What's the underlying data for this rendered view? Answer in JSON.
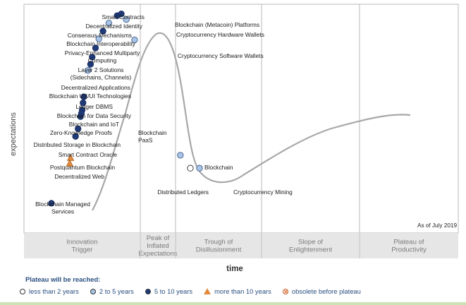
{
  "chart_data": {
    "type": "scatter",
    "title": "",
    "xlabel": "time",
    "ylabel": "expectations",
    "as_of": "As of July 2019",
    "phases": [
      {
        "lines": [
          "Innovation",
          "Trigger"
        ]
      },
      {
        "lines": [
          "Peak of",
          "Inflated",
          "Expectations"
        ]
      },
      {
        "lines": [
          "Trough of",
          "Disillusionment"
        ]
      },
      {
        "lines": [
          "Slope of",
          "Enlightenment"
        ]
      },
      {
        "lines": [
          "Plateau of",
          "Productivity"
        ]
      }
    ],
    "curve_color": "#a8a8a8",
    "legend_title": "Plateau will be reached:",
    "legend": [
      {
        "key": "lt2",
        "label": "less than 2 years",
        "color": "#ffffff"
      },
      {
        "key": "2to5",
        "label": "2 to 5 years",
        "color": "#a9c4e6"
      },
      {
        "key": "5to10",
        "label": "5 to 10 years",
        "color": "#1f3a78"
      },
      {
        "key": "gt10",
        "label": "more than 10 years",
        "color": "#e28a3c"
      },
      {
        "key": "obs",
        "label": "obsolete before plateau",
        "color": "#cc5a1e"
      }
    ],
    "points": [
      {
        "label": [
          "Smart Contracts"
        ],
        "x": 1.62,
        "y": 8.55,
        "plateau": "5to10"
      },
      {
        "label": [
          "Decentralized Identity"
        ],
        "x": 1.52,
        "y": 8.26,
        "plateau": "2to5"
      },
      {
        "label": [
          "Consensus Mechanisms"
        ],
        "x": 1.45,
        "y": 7.94,
        "plateau": "5to10"
      },
      {
        "label": [
          "Blockchain Interoperability"
        ],
        "x": 1.4,
        "y": 7.64,
        "plateau": "2to5"
      },
      {
        "label": [
          "Privacy-Enhanced Multiparty",
          "Computing"
        ],
        "x": 1.36,
        "y": 7.28,
        "plateau": "5to10"
      },
      {
        "label": [
          "Layer 2 Solutions",
          "(Sidechains, Channels)"
        ],
        "x": 1.32,
        "y": 6.92,
        "plateau": "5to10"
      },
      {
        "label": [
          "Decentralized Applications"
        ],
        "x": 1.3,
        "y": 6.64,
        "plateau": "5to10"
      },
      {
        "label": [
          "Blockchain UX/UI Technologies"
        ],
        "x": 1.27,
        "y": 6.4,
        "plateau": "2to5"
      },
      {
        "label": [
          "Ledger DBMS"
        ],
        "x": 1.22,
        "y": 5.36,
        "plateau": "5to10"
      },
      {
        "label": [
          "Blockchain for Data Security"
        ],
        "x": 1.21,
        "y": 5.12,
        "plateau": "5to10"
      },
      {
        "label": [
          "Blockchain and IoT"
        ],
        "x": 1.2,
        "y": 4.84,
        "plateau": "5to10"
      },
      {
        "label": [
          "Zero-Knowledge Proofs"
        ],
        "x": 1.18,
        "y": 4.58,
        "plateau": "5to10"
      },
      {
        "label": [
          "Blockchain",
          "PaaS"
        ],
        "x": 1.19,
        "y": 4.7,
        "plateau": "5to10"
      },
      {
        "label": [
          "Distributed Storage in Blockchain"
        ],
        "x": 1.15,
        "y": 4.1,
        "plateau": "5to10"
      },
      {
        "label": [
          "Smart Contract Oracle"
        ],
        "x": 1.12,
        "y": 3.8,
        "plateau": "5to10"
      },
      {
        "label": [
          "Postquantum Blockchain"
        ],
        "x": 1.06,
        "y": 2.95,
        "plateau": "gt10"
      },
      {
        "label": [
          "Decentralized Web"
        ],
        "x": 1.05,
        "y": 2.73,
        "plateau": "gt10"
      },
      {
        "label": [
          "Blockchain Managed",
          "Services"
        ],
        "x": 0.83,
        "y": 1.17,
        "plateau": "5to10"
      },
      {
        "label": [
          "Blockchain (Metacoin) Platforms"
        ],
        "x": 1.67,
        "y": 8.62,
        "plateau": "5to10"
      },
      {
        "label": [
          "Cryptocurrency Hardware Wallets"
        ],
        "x": 1.73,
        "y": 8.4,
        "plateau": "2to5"
      },
      {
        "label": [
          "Cryptocurrency Software Wallets"
        ],
        "x": 1.83,
        "y": 7.6,
        "plateau": "2to5"
      },
      {
        "label": [
          "Blockchain"
        ],
        "x": 2.38,
        "y": 3.06,
        "plateau": "2to5"
      },
      {
        "label": [
          "Distributed Ledgers"
        ],
        "x": 2.5,
        "y": 2.55,
        "plateau": "lt2"
      },
      {
        "label": [
          "Cryptocurrency Mining"
        ],
        "x": 2.61,
        "y": 2.55,
        "plateau": "2to5"
      }
    ]
  }
}
